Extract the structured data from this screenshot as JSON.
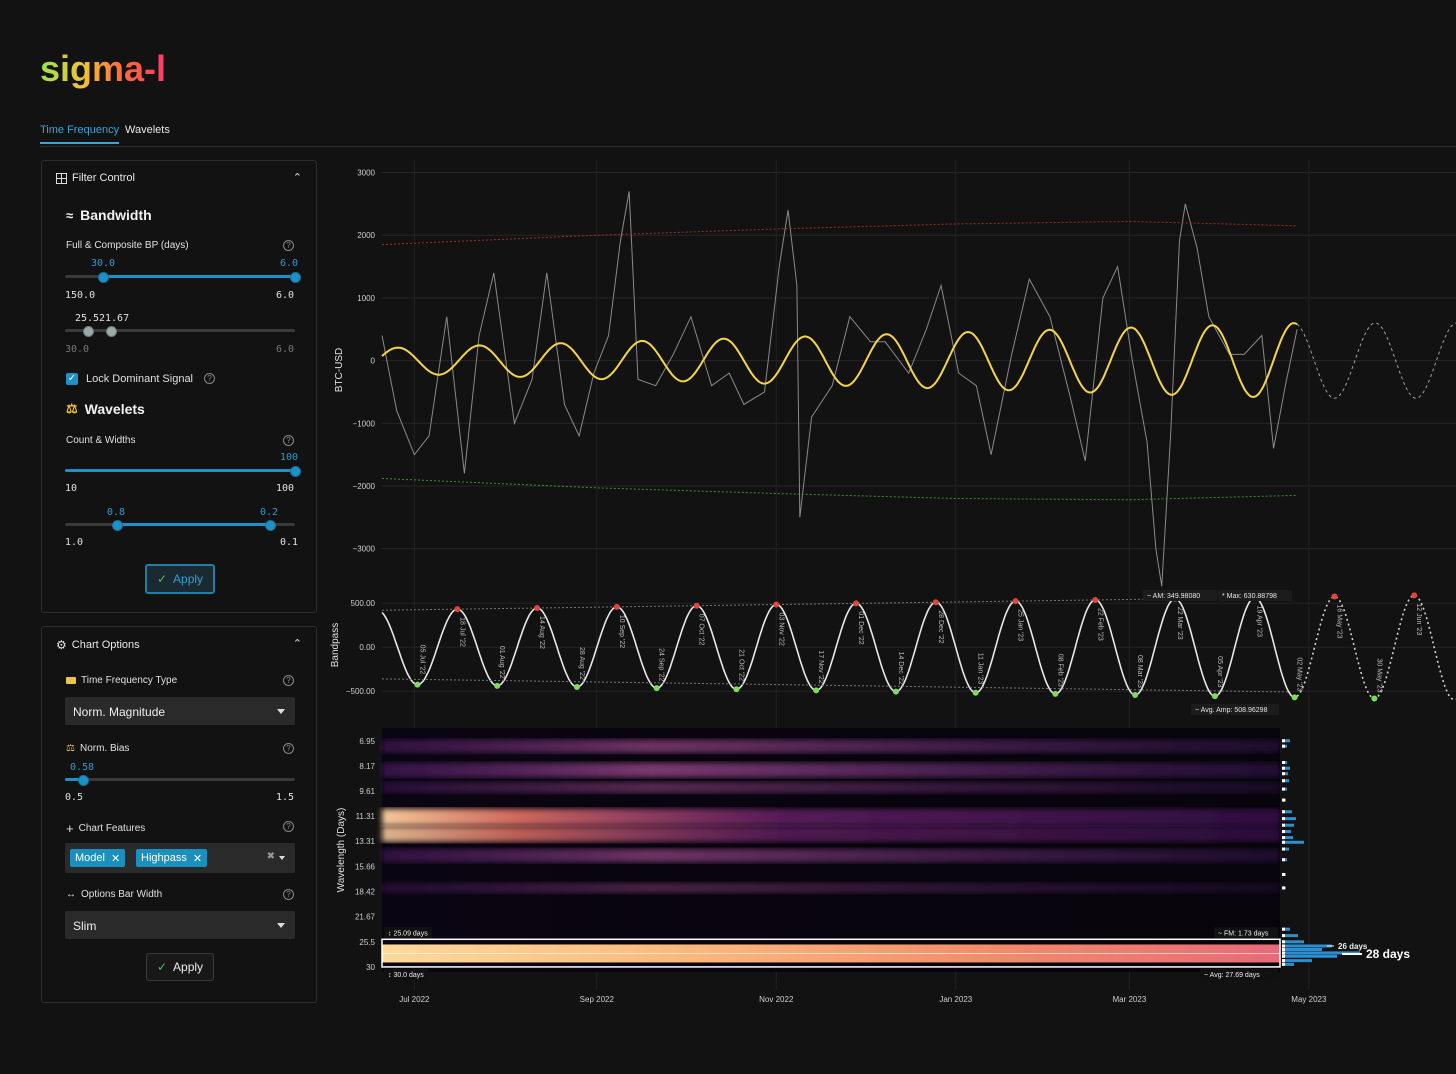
{
  "app": {
    "logo": "sigma-l"
  },
  "tabs": [
    {
      "label": "Time Frequency",
      "active": true
    },
    {
      "label": "Wavelets",
      "active": false
    }
  ],
  "filter_control": {
    "title": "Filter Control",
    "bandwidth": {
      "title": "Bandwidth",
      "label": "Full & Composite BP (days)",
      "range_low_label": "30.0",
      "range_high_label": "6.0",
      "range_min": "150.0",
      "range_max": "6.0",
      "composite_low_label": "25.5",
      "composite_high_label": "21.67",
      "composite_min": "30.0",
      "composite_max": "6.0"
    },
    "lock_dominant": {
      "label": "Lock Dominant Signal",
      "checked": true
    },
    "wavelets": {
      "title": "Wavelets",
      "label": "Count & Widths",
      "count_value": "100",
      "count_min": "10",
      "count_max": "100",
      "width_low_label": "0.8",
      "width_high_label": "0.2",
      "width_min": "1.0",
      "width_max": "0.1"
    },
    "apply_label": "Apply"
  },
  "chart_options": {
    "title": "Chart Options",
    "tf_type_label": "Time Frequency Type",
    "tf_type_value": "Norm. Magnitude",
    "norm_bias_label": "Norm. Bias",
    "norm_bias_value": "0.58",
    "norm_bias_min": "0.5",
    "norm_bias_max": "1.5",
    "features_label": "Chart Features",
    "features": [
      "Model",
      "Highpass"
    ],
    "bar_width_label": "Options Bar Width",
    "bar_width_value": "Slim",
    "apply_label": "Apply"
  },
  "colors": {
    "accent": "#1e90c8",
    "model": "#f5d547",
    "peak": "#e0473a",
    "trough": "#7cdb5a"
  },
  "chart_data": [
    {
      "type": "line",
      "ylabel": "BTC-USD",
      "ylim": [
        -3500,
        3200
      ],
      "yticks": [
        "3000",
        "2000",
        "1000",
        "0",
        "−1000",
        "−2000",
        "−3000"
      ],
      "ytick_values": [
        3000,
        2000,
        1000,
        0,
        -1000,
        -2000,
        -3000
      ],
      "x_start": "2022-06-20",
      "x_end": "2023-06-20",
      "xticks": [
        "Jul 2022",
        "Sep 2022",
        "Nov 2022",
        "Jan 2023",
        "Mar 2023",
        "May 2023"
      ],
      "xtick_dates": [
        "2022-07-01",
        "2022-09-01",
        "2022-11-01",
        "2023-01-01",
        "2023-03-01",
        "2023-05-01"
      ],
      "series": [
        {
          "values": [
            [
              "2022-06-20",
              400
            ],
            [
              "2022-06-25",
              -800
            ],
            [
              "2022-07-01",
              -1500
            ],
            [
              "2022-07-06",
              -1200
            ],
            [
              "2022-07-12",
              700
            ],
            [
              "2022-07-18",
              -1800
            ],
            [
              "2022-07-23",
              400
            ],
            [
              "2022-07-28",
              1400
            ],
            [
              "2022-08-04",
              -1000
            ],
            [
              "2022-08-10",
              -300
            ],
            [
              "2022-08-15",
              1400
            ],
            [
              "2022-08-21",
              -700
            ],
            [
              "2022-08-26",
              -1200
            ],
            [
              "2022-08-31",
              -200
            ],
            [
              "2022-09-05",
              400
            ],
            [
              "2022-09-09",
              1900
            ],
            [
              "2022-09-12",
              2700
            ],
            [
              "2022-09-15",
              -300
            ],
            [
              "2022-09-21",
              -400
            ],
            [
              "2022-09-27",
              100
            ],
            [
              "2022-10-03",
              700
            ],
            [
              "2022-10-10",
              -400
            ],
            [
              "2022-10-16",
              -200
            ],
            [
              "2022-10-21",
              -700
            ],
            [
              "2022-10-28",
              -500
            ],
            [
              "2022-11-02",
              1500
            ],
            [
              "2022-11-05",
              2400
            ],
            [
              "2022-11-08",
              1200
            ],
            [
              "2022-11-09",
              -2500
            ],
            [
              "2022-11-13",
              -900
            ],
            [
              "2022-11-20",
              -400
            ],
            [
              "2022-11-26",
              700
            ],
            [
              "2022-12-03",
              300
            ],
            [
              "2022-12-08",
              300
            ],
            [
              "2022-12-16",
              -200
            ],
            [
              "2022-12-22",
              500
            ],
            [
              "2022-12-27",
              1200
            ],
            [
              "2023-01-02",
              -200
            ],
            [
              "2023-01-08",
              -400
            ],
            [
              "2023-01-13",
              -1500
            ],
            [
              "2023-01-20",
              100
            ],
            [
              "2023-01-26",
              1300
            ],
            [
              "2023-02-02",
              700
            ],
            [
              "2023-02-09",
              -600
            ],
            [
              "2023-02-14",
              -1600
            ],
            [
              "2023-02-20",
              1000
            ],
            [
              "2023-02-25",
              1500
            ],
            [
              "2023-03-02",
              0
            ],
            [
              "2023-03-07",
              -1300
            ],
            [
              "2023-03-10",
              -3000
            ],
            [
              "2023-03-12",
              -3600
            ],
            [
              "2023-03-15",
              -1200
            ],
            [
              "2023-03-18",
              1900
            ],
            [
              "2023-03-20",
              2500
            ],
            [
              "2023-03-24",
              1800
            ],
            [
              "2023-03-28",
              700
            ],
            [
              "2023-04-04",
              100
            ],
            [
              "2023-04-09",
              100
            ],
            [
              "2023-04-15",
              400
            ],
            [
              "2023-04-19",
              -1400
            ],
            [
              "2023-04-23",
              -400
            ],
            [
              "2023-04-27",
              500
            ]
          ]
        },
        {
          "values": [
            [
              "2022-06-20",
              -1880
            ],
            [
              "2022-09-01",
              -2030
            ],
            [
              "2022-11-01",
              -2120
            ],
            [
              "2023-01-01",
              -2200
            ],
            [
              "2023-03-01",
              -2220
            ],
            [
              "2023-04-27",
              -2150
            ]
          ]
        },
        {
          "values": [
            [
              "2022-06-20",
              1850
            ],
            [
              "2022-09-01",
              2000
            ],
            [
              "2022-11-01",
              2100
            ],
            [
              "2023-01-01",
              2180
            ],
            [
              "2023-03-01",
              2220
            ],
            [
              "2023-04-27",
              2150
            ]
          ]
        }
      ],
      "model": {
        "period_days": 27.69,
        "amplitude_start": 200,
        "amplitude_end": 600,
        "phase_date": "2022-06-20",
        "phase_value": 0.2,
        "end_date": "2023-04-27",
        "projection_end": "2023-06-20"
      }
    },
    {
      "type": "line",
      "ylabel": "Bandpass",
      "ylim": [
        -600,
        650
      ],
      "yticks": [
        "500.00",
        "0.00",
        "−500.00"
      ],
      "ytick_values": [
        500,
        0,
        -500
      ],
      "am_label": "AM: 349.98080",
      "max_label": "Max: 630.88798",
      "avg_amp_label": "Avg. Amp: 508.96298",
      "extrema": [
        {
          "label": "05 Jul '22",
          "kind": "trough"
        },
        {
          "label": "18 Jul '22",
          "kind": "peak"
        },
        {
          "label": "01 Aug '22",
          "kind": "trough"
        },
        {
          "label": "14 Aug '22",
          "kind": "peak"
        },
        {
          "label": "28 Aug '22",
          "kind": "trough"
        },
        {
          "label": "10 Sep '22",
          "kind": "peak"
        },
        {
          "label": "24 Sep '22",
          "kind": "trough"
        },
        {
          "label": "07 Oct '22",
          "kind": "peak"
        },
        {
          "label": "21 Oct '22",
          "kind": "trough"
        },
        {
          "label": "03 Nov '22",
          "kind": "peak"
        },
        {
          "label": "17 Nov '22",
          "kind": "trough"
        },
        {
          "label": "01 Dec '22",
          "kind": "peak"
        },
        {
          "label": "14 Dec '22",
          "kind": "trough"
        },
        {
          "label": "28 Dec '22",
          "kind": "peak"
        },
        {
          "label": "11 Jan '23",
          "kind": "trough"
        },
        {
          "label": "25 Jan '23",
          "kind": "peak"
        },
        {
          "label": "08 Feb '23",
          "kind": "trough"
        },
        {
          "label": "22 Feb '23",
          "kind": "peak"
        },
        {
          "label": "08 Mar '23",
          "kind": "trough"
        },
        {
          "label": "22 Mar '23",
          "kind": "peak"
        },
        {
          "label": "05 Apr '23",
          "kind": "trough"
        },
        {
          "label": "19 Apr '23",
          "kind": "peak"
        },
        {
          "label": "02 May '23",
          "kind": "trough"
        },
        {
          "label": "16 May '23",
          "kind": "peak"
        },
        {
          "label": "30 May '23",
          "kind": "trough"
        },
        {
          "label": "12 Jun '23",
          "kind": "peak"
        }
      ]
    },
    {
      "type": "heatmap",
      "ylabel": "Wavelength (Days)",
      "yticks": [
        "6.95",
        "8.17",
        "9.61",
        "11.31",
        "13.31",
        "15.66",
        "18.42",
        "21.67",
        "25.5",
        "30"
      ],
      "low_bound_label": "25.09 days",
      "high_bound_label": "30.0 days",
      "fm_label": "FM: 1.73 days",
      "avg_label": "Avg: 27.69 days",
      "histogram_labels": [
        "26 days",
        "28 days"
      ],
      "bands": [
        {
          "wavelength": 7.2,
          "strength": 0.55
        },
        {
          "wavelength": 8.4,
          "strength": 0.7
        },
        {
          "wavelength": 9.4,
          "strength": 0.3
        },
        {
          "wavelength": 11.4,
          "strength": 1.0
        },
        {
          "wavelength": 12.7,
          "strength": 0.85
        },
        {
          "wavelength": 14.6,
          "strength": 0.55
        },
        {
          "wavelength": 18.0,
          "strength": 0.15
        },
        {
          "wavelength": 27.5,
          "strength": 1.0
        }
      ]
    }
  ]
}
